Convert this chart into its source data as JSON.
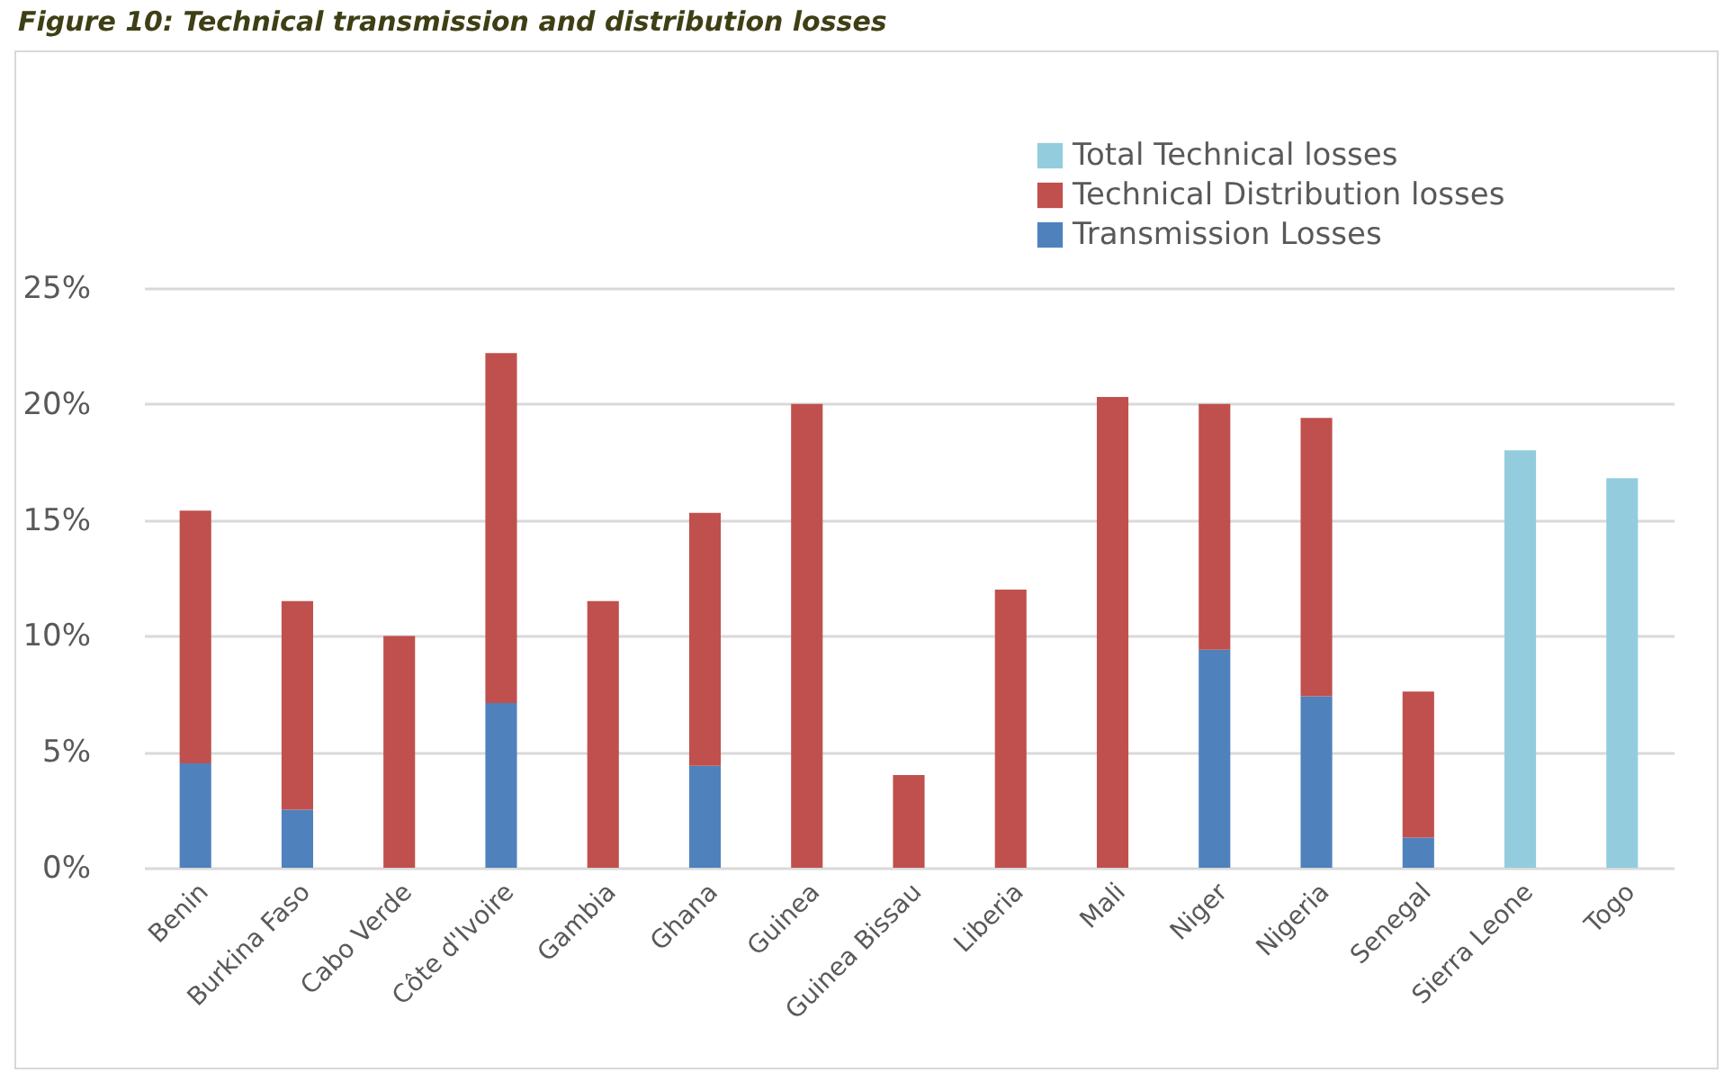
{
  "chart_data": {
    "type": "bar",
    "title": "Figure 10: Technical transmission and distribution losses",
    "stacked": true,
    "categories": [
      "Benin",
      "Burkina Faso",
      "Cabo Verde",
      "Côte d'Ivoire",
      "Gambia",
      "Ghana",
      "Guinea",
      "Guinea Bissau",
      "Liberia",
      "Mali",
      "Niger",
      "Nigeria",
      "Senegal",
      "Sierra Leone",
      "Togo"
    ],
    "series": [
      {
        "name": "Transmission Losses",
        "color": "#4f81bd",
        "values": [
          4.5,
          2.5,
          null,
          7.1,
          null,
          4.4,
          null,
          null,
          null,
          null,
          9.4,
          7.4,
          1.3,
          null,
          null
        ]
      },
      {
        "name": "Technical Distribution losses",
        "color": "#c0504d",
        "values": [
          10.9,
          9.0,
          10.0,
          15.1,
          11.5,
          10.9,
          20.0,
          4.0,
          12.0,
          20.3,
          10.6,
          12.0,
          6.3,
          null,
          null
        ]
      },
      {
        "name": "Total Technical losses",
        "color": "#93cddd",
        "values": [
          null,
          null,
          null,
          null,
          null,
          null,
          null,
          null,
          null,
          null,
          null,
          null,
          null,
          18.0,
          16.8
        ]
      }
    ],
    "ylim": [
      0,
      25
    ],
    "yticks": [
      {
        "value": 0,
        "label": "0%"
      },
      {
        "value": 5,
        "label": "5%"
      },
      {
        "value": 10,
        "label": "10%"
      },
      {
        "value": 15,
        "label": "15%"
      },
      {
        "value": 20,
        "label": "20%"
      },
      {
        "value": 25,
        "label": "25%"
      }
    ],
    "grid": "y",
    "legend": "top right"
  }
}
